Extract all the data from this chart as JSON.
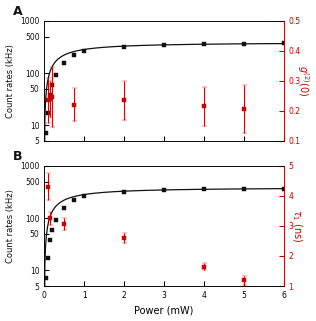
{
  "panel_A": {
    "label": "A",
    "count_x": [
      0.05,
      0.1,
      0.15,
      0.2,
      0.3,
      0.5,
      0.75,
      1.0,
      2.0,
      3.0,
      4.0,
      5.0,
      6.0
    ],
    "count_y": [
      7,
      17,
      38,
      60,
      90,
      155,
      225,
      265,
      315,
      340,
      355,
      362,
      368
    ],
    "fit_Isat": 390,
    "fit_Psat": 0.38,
    "g2_x": [
      0.1,
      0.15,
      0.2,
      0.75,
      2.0,
      4.0,
      5.0
    ],
    "g2_y": [
      0.235,
      0.24,
      0.245,
      0.22,
      0.235,
      0.215,
      0.205
    ],
    "g2_yerr": [
      0.075,
      0.06,
      0.1,
      0.055,
      0.065,
      0.065,
      0.08
    ],
    "ylim_left": [
      5,
      1000
    ],
    "ylim_right": [
      0.1,
      0.5
    ],
    "yticks_right": [
      0.1,
      0.2,
      0.3,
      0.4,
      0.5
    ],
    "yticks_left": [
      5,
      10,
      50,
      100,
      500,
      1000
    ],
    "ytick_labels_left": [
      "5",
      "10",
      "50",
      "100",
      "500",
      "1000"
    ],
    "ylabel_left": "Count rates (kHz)",
    "ylabel_right": "$g^{(2)}(0)$",
    "xlabel": ""
  },
  "panel_B": {
    "label": "B",
    "count_x": [
      0.05,
      0.1,
      0.15,
      0.2,
      0.3,
      0.5,
      0.75,
      1.0,
      2.0,
      3.0,
      4.0,
      5.0,
      6.0
    ],
    "count_y": [
      7,
      17,
      38,
      60,
      90,
      155,
      225,
      265,
      315,
      340,
      355,
      362,
      368
    ],
    "fit_Isat": 390,
    "fit_Psat": 0.38,
    "tau_x": [
      0.1,
      0.15,
      0.5,
      2.0,
      4.0,
      5.0
    ],
    "tau_y": [
      4.3,
      3.25,
      3.05,
      2.6,
      1.65,
      1.2
    ],
    "tau_yerr": [
      0.45,
      0.22,
      0.2,
      0.18,
      0.12,
      0.15
    ],
    "ylim_left": [
      5,
      1000
    ],
    "ylim_right": [
      1,
      5
    ],
    "yticks_right": [
      1,
      2,
      3,
      4,
      5
    ],
    "yticks_left": [
      5,
      10,
      50,
      100,
      500,
      1000
    ],
    "ytick_labels_left": [
      "5",
      "10",
      "50",
      "100",
      "500",
      "1000"
    ],
    "ylabel_left": "Count rates (kHz)",
    "ylabel_right": "$\\tau_1$ (ns)",
    "xlabel": "Power (mW)"
  },
  "black_color": "#111111",
  "red_color": "#cc0000",
  "xlim": [
    0,
    6
  ],
  "xticks": [
    0,
    1,
    2,
    3,
    4,
    5,
    6
  ],
  "fig_bg": "#ffffff"
}
